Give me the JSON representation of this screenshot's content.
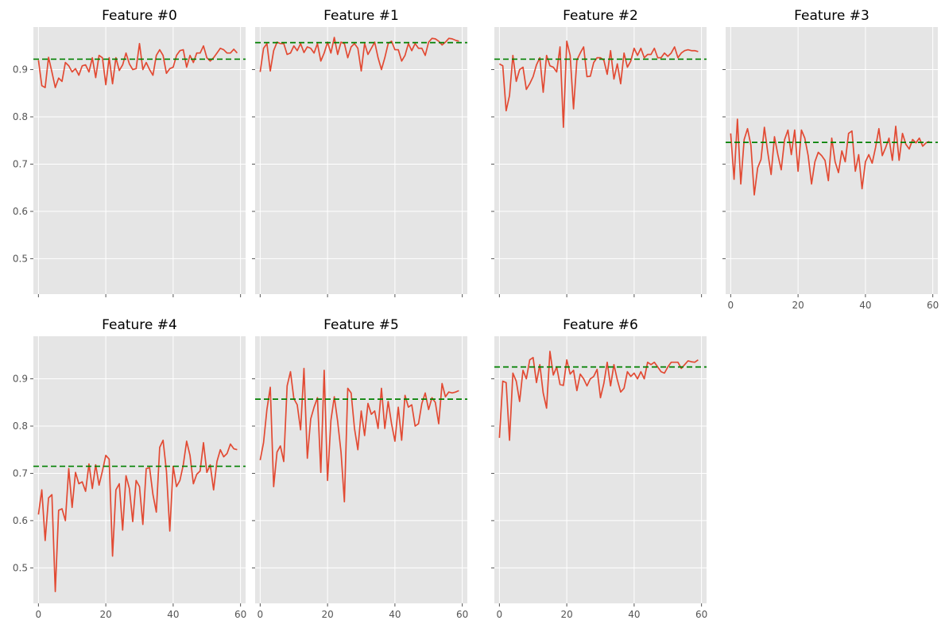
{
  "chart_data": {
    "type": "line",
    "layout": "grid",
    "grid": true,
    "sharex": true,
    "sharey": true,
    "xlim": [
      -1.5,
      61.5
    ],
    "ylim": [
      0.425,
      0.99
    ],
    "xticks": [
      0,
      20,
      40,
      60
    ],
    "yticks": [
      0.5,
      0.6,
      0.7,
      0.8,
      0.9
    ],
    "xtick_labels": [
      "0",
      "20",
      "40",
      "60"
    ],
    "ytick_labels": [
      "0.5",
      "0.6",
      "0.7",
      "0.8",
      "0.9"
    ],
    "colors": {
      "series": "#e24a33",
      "reference": "#008000",
      "background": "#e5e5e5",
      "grid": "#ffffff"
    },
    "panels": [
      {
        "title": "Feature #0",
        "reference": 0.922,
        "values": [
          0.92,
          0.866,
          0.862,
          0.926,
          0.895,
          0.862,
          0.882,
          0.875,
          0.915,
          0.908,
          0.895,
          0.902,
          0.888,
          0.908,
          0.91,
          0.895,
          0.925,
          0.883,
          0.93,
          0.925,
          0.868,
          0.925,
          0.87,
          0.925,
          0.898,
          0.91,
          0.935,
          0.912,
          0.9,
          0.902,
          0.955,
          0.9,
          0.915,
          0.9,
          0.888,
          0.93,
          0.942,
          0.93,
          0.892,
          0.902,
          0.905,
          0.93,
          0.94,
          0.942,
          0.905,
          0.93,
          0.915,
          0.935,
          0.935,
          0.95,
          0.925,
          0.918,
          0.925,
          0.935,
          0.945,
          0.942,
          0.935,
          0.935,
          0.943,
          0.935
        ]
      },
      {
        "title": "Feature #1",
        "reference": 0.957,
        "values": [
          0.895,
          0.945,
          0.955,
          0.897,
          0.94,
          0.958,
          0.955,
          0.955,
          0.932,
          0.935,
          0.95,
          0.94,
          0.955,
          0.936,
          0.948,
          0.945,
          0.935,
          0.955,
          0.918,
          0.935,
          0.958,
          0.935,
          0.968,
          0.932,
          0.958,
          0.955,
          0.925,
          0.948,
          0.955,
          0.945,
          0.897,
          0.955,
          0.932,
          0.945,
          0.958,
          0.925,
          0.9,
          0.925,
          0.955,
          0.96,
          0.942,
          0.942,
          0.918,
          0.93,
          0.955,
          0.94,
          0.955,
          0.945,
          0.945,
          0.93,
          0.958,
          0.966,
          0.965,
          0.96,
          0.952,
          0.958,
          0.966,
          0.965,
          0.962,
          0.96
        ]
      },
      {
        "title": "Feature #2",
        "reference": 0.922,
        "values": [
          0.912,
          0.908,
          0.813,
          0.845,
          0.93,
          0.875,
          0.9,
          0.905,
          0.858,
          0.87,
          0.885,
          0.91,
          0.925,
          0.852,
          0.93,
          0.908,
          0.905,
          0.895,
          0.948,
          0.778,
          0.96,
          0.93,
          0.817,
          0.92,
          0.935,
          0.948,
          0.885,
          0.886,
          0.915,
          0.925,
          0.925,
          0.92,
          0.89,
          0.94,
          0.88,
          0.912,
          0.87,
          0.935,
          0.905,
          0.918,
          0.945,
          0.93,
          0.945,
          0.925,
          0.932,
          0.932,
          0.945,
          0.925,
          0.925,
          0.935,
          0.928,
          0.935,
          0.948,
          0.925,
          0.935,
          0.94,
          0.942,
          0.94,
          0.94,
          0.938
        ]
      },
      {
        "title": "Feature #3",
        "reference": 0.746,
        "values": [
          0.765,
          0.668,
          0.795,
          0.658,
          0.752,
          0.775,
          0.74,
          0.635,
          0.692,
          0.71,
          0.778,
          0.725,
          0.678,
          0.758,
          0.72,
          0.688,
          0.752,
          0.772,
          0.72,
          0.772,
          0.685,
          0.772,
          0.755,
          0.718,
          0.658,
          0.705,
          0.725,
          0.718,
          0.708,
          0.665,
          0.755,
          0.705,
          0.682,
          0.728,
          0.705,
          0.765,
          0.77,
          0.685,
          0.72,
          0.648,
          0.705,
          0.72,
          0.702,
          0.735,
          0.775,
          0.718,
          0.735,
          0.755,
          0.708,
          0.78,
          0.708,
          0.765,
          0.742,
          0.732,
          0.752,
          0.745,
          0.755,
          0.738,
          0.745,
          0.748
        ]
      },
      {
        "title": "Feature #4",
        "reference": 0.715,
        "values": [
          0.613,
          0.665,
          0.558,
          0.648,
          0.655,
          0.45,
          0.622,
          0.625,
          0.6,
          0.71,
          0.628,
          0.702,
          0.678,
          0.682,
          0.662,
          0.72,
          0.668,
          0.718,
          0.675,
          0.705,
          0.738,
          0.73,
          0.525,
          0.665,
          0.678,
          0.58,
          0.695,
          0.668,
          0.598,
          0.685,
          0.672,
          0.592,
          0.71,
          0.712,
          0.655,
          0.618,
          0.755,
          0.77,
          0.705,
          0.578,
          0.715,
          0.672,
          0.685,
          0.718,
          0.768,
          0.738,
          0.678,
          0.698,
          0.705,
          0.765,
          0.702,
          0.718,
          0.665,
          0.725,
          0.75,
          0.735,
          0.742,
          0.762,
          0.752,
          0.75
        ]
      },
      {
        "title": "Feature #5",
        "reference": 0.857,
        "values": [
          0.728,
          0.765,
          0.835,
          0.882,
          0.672,
          0.745,
          0.758,
          0.725,
          0.885,
          0.915,
          0.858,
          0.845,
          0.792,
          0.922,
          0.732,
          0.815,
          0.84,
          0.86,
          0.702,
          0.918,
          0.685,
          0.812,
          0.862,
          0.81,
          0.745,
          0.64,
          0.88,
          0.87,
          0.795,
          0.75,
          0.832,
          0.78,
          0.848,
          0.825,
          0.832,
          0.795,
          0.88,
          0.795,
          0.852,
          0.805,
          0.768,
          0.84,
          0.77,
          0.865,
          0.84,
          0.845,
          0.8,
          0.805,
          0.848,
          0.87,
          0.835,
          0.86,
          0.85,
          0.805,
          0.89,
          0.862,
          0.872,
          0.87,
          0.872,
          0.875
        ]
      },
      {
        "title": "Feature #6",
        "reference": 0.925,
        "values": [
          0.775,
          0.895,
          0.892,
          0.77,
          0.912,
          0.895,
          0.852,
          0.918,
          0.9,
          0.94,
          0.945,
          0.892,
          0.93,
          0.87,
          0.838,
          0.958,
          0.908,
          0.925,
          0.888,
          0.886,
          0.94,
          0.91,
          0.918,
          0.875,
          0.91,
          0.9,
          0.885,
          0.9,
          0.905,
          0.92,
          0.86,
          0.89,
          0.935,
          0.885,
          0.93,
          0.898,
          0.872,
          0.88,
          0.915,
          0.905,
          0.912,
          0.9,
          0.915,
          0.9,
          0.935,
          0.93,
          0.935,
          0.925,
          0.915,
          0.912,
          0.925,
          0.935,
          0.935,
          0.935,
          0.922,
          0.93,
          0.938,
          0.936,
          0.935,
          0.94
        ]
      }
    ]
  }
}
